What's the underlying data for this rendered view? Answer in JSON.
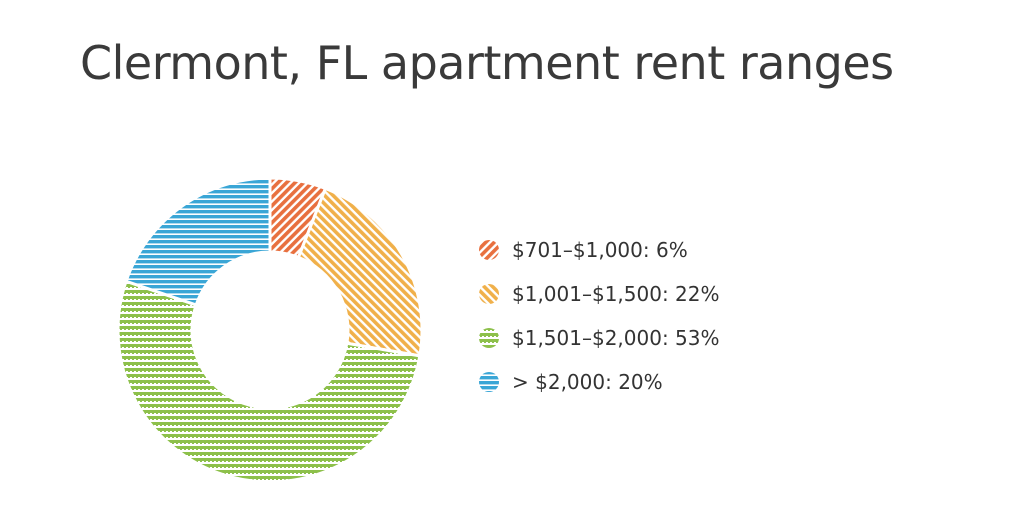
{
  "chart_data": {
    "type": "pie",
    "donut": true,
    "title": "Clermont, FL apartment rent ranges",
    "slices": [
      {
        "label": "$701–$1,000: 6%",
        "value": 6,
        "color": "#e8703f",
        "pattern": "diag-back"
      },
      {
        "label": "$1,001–$1,500: 22%",
        "value": 22,
        "color": "#f0b04a",
        "pattern": "diag-forward"
      },
      {
        "label": "$1,501–$2,000: 53%",
        "value": 53,
        "color": "#8dc04b",
        "pattern": "wave"
      },
      {
        "label": "> $2,000: 20%",
        "value": 20,
        "color": "#3aa6d6",
        "pattern": "horizontal"
      }
    ],
    "legend_position": "right"
  }
}
